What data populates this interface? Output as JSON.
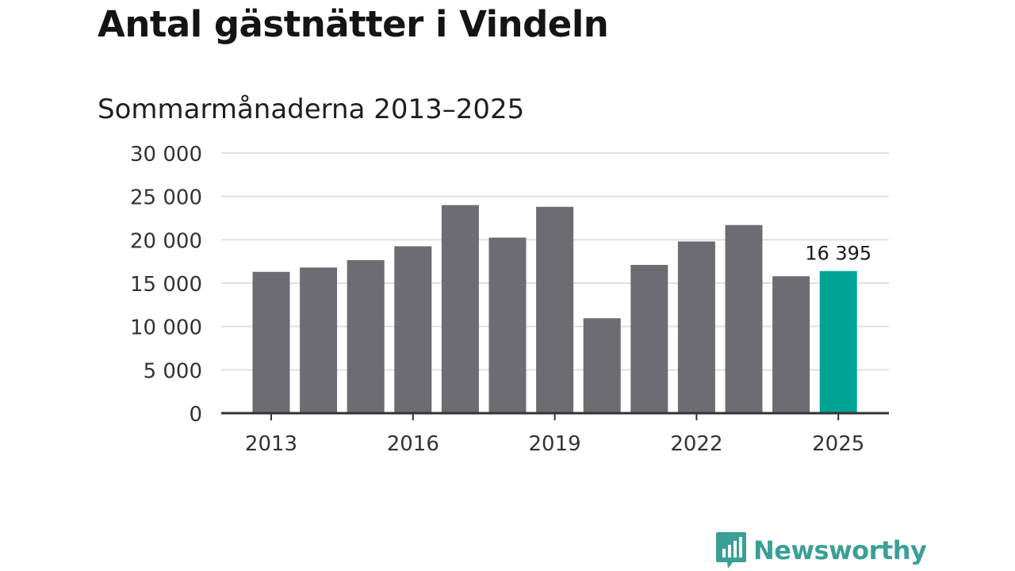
{
  "chart_data": {
    "type": "bar",
    "title": "Antal gästnätter i Vindeln",
    "subtitle": "Sommarmånaderna 2013–2025",
    "categories": [
      "2013",
      "2014",
      "2015",
      "2016",
      "2017",
      "2018",
      "2019",
      "2020",
      "2021",
      "2022",
      "2023",
      "2024",
      "2025"
    ],
    "values": [
      16300,
      16800,
      17650,
      19250,
      24000,
      20250,
      23800,
      10950,
      17100,
      19800,
      21700,
      15800,
      16395
    ],
    "x_tick_labels": [
      "2013",
      "2016",
      "2019",
      "2022",
      "2025"
    ],
    "y_ticks": [
      {
        "value": 0,
        "label": "0"
      },
      {
        "value": 5000,
        "label": "5 000"
      },
      {
        "value": 10000,
        "label": "10 000"
      },
      {
        "value": 15000,
        "label": "15 000"
      },
      {
        "value": 20000,
        "label": "20 000"
      },
      {
        "value": 25000,
        "label": "25 000"
      },
      {
        "value": 30000,
        "label": "30 000"
      }
    ],
    "ylim": [
      0,
      30000
    ],
    "grid": true,
    "highlight": {
      "category": "2025",
      "label": "16 395"
    },
    "colors": {
      "bar": "#6d6c72",
      "highlight": "#00a497",
      "grid": "#e0e0e0",
      "axis": "#333333",
      "text": "#333333"
    }
  },
  "branding": {
    "name": "Newsworthy",
    "icon": "newsworthy-logo-icon",
    "color": "#3aa095"
  }
}
